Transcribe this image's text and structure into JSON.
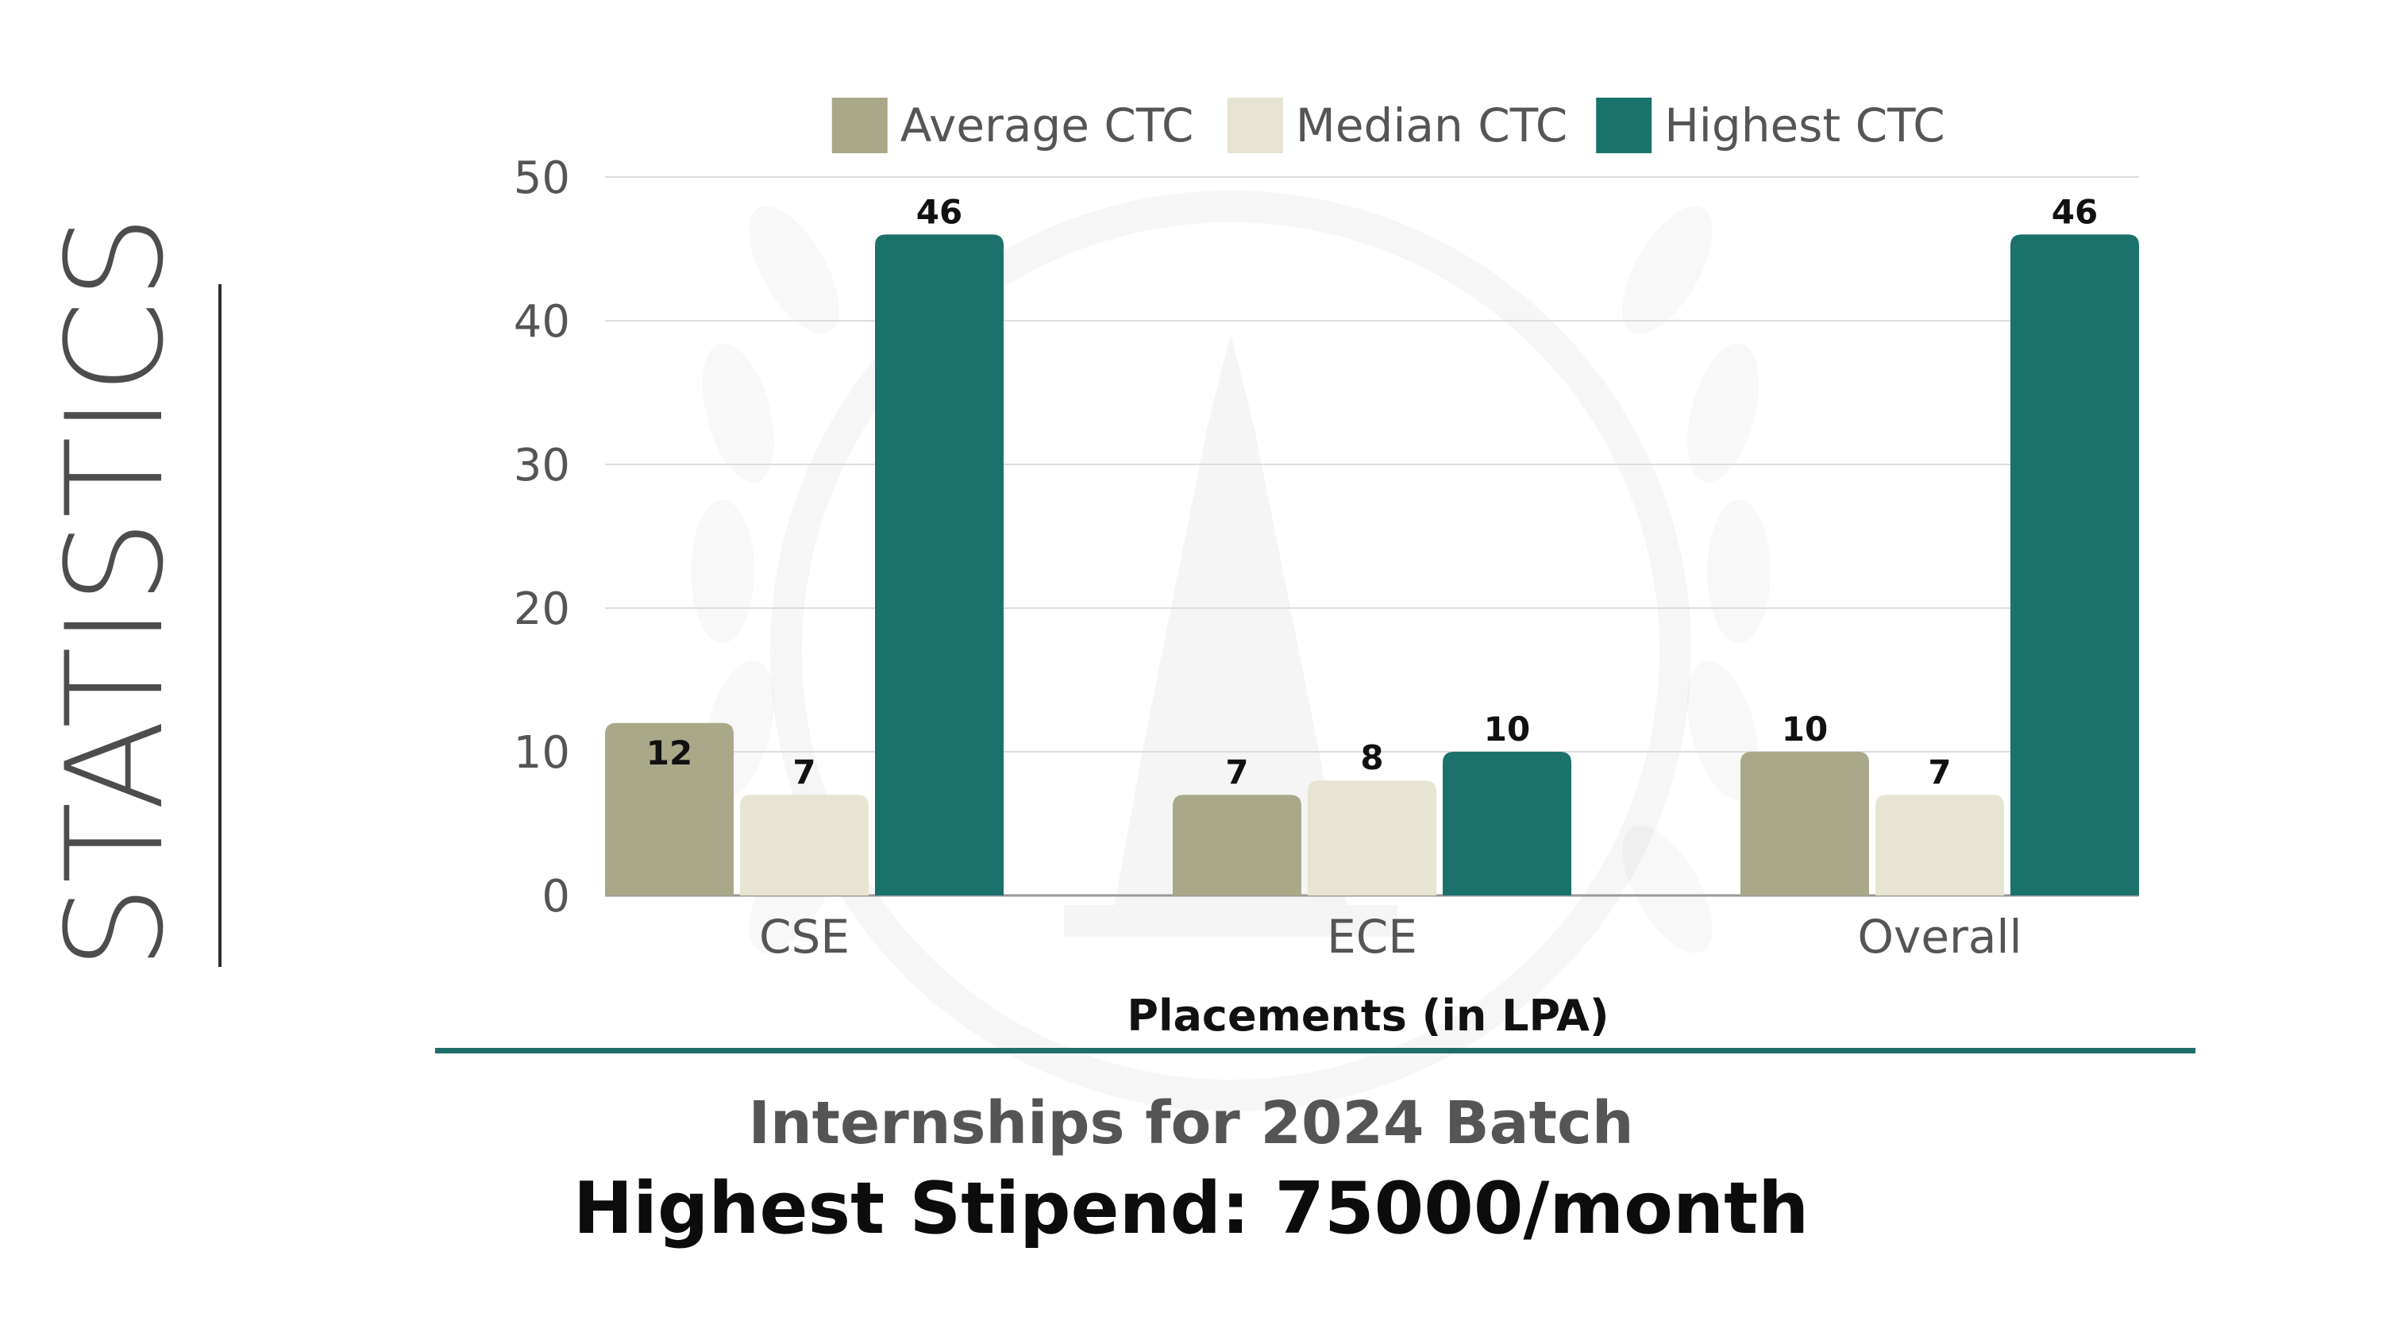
{
  "side_title": "STATISTICS",
  "chart_data": {
    "type": "bar",
    "categories": [
      "CSE",
      "ECE",
      "Overall"
    ],
    "series": [
      {
        "name": "Average CTC",
        "values": [
          12,
          7,
          10
        ],
        "color": "#a9a98a"
      },
      {
        "name": "Median CTC",
        "values": [
          7,
          8,
          7
        ],
        "color": "#e8e4d3"
      },
      {
        "name": "Highest CTC",
        "values": [
          46,
          10,
          46
        ],
        "color": "#1b726b"
      }
    ],
    "xlabel": "Placements (in LPA)",
    "ylabel": "",
    "ylim": [
      0,
      50
    ],
    "yticks": [
      0,
      10,
      20,
      30,
      40,
      50
    ],
    "grid": true,
    "legend": "top-center"
  },
  "internships": {
    "heading": "Internships for 2024 Batch",
    "stipend": "Highest Stipend: 75000/month"
  },
  "colors": {
    "accent": "#1b726b",
    "divider": "#1f6f68"
  }
}
